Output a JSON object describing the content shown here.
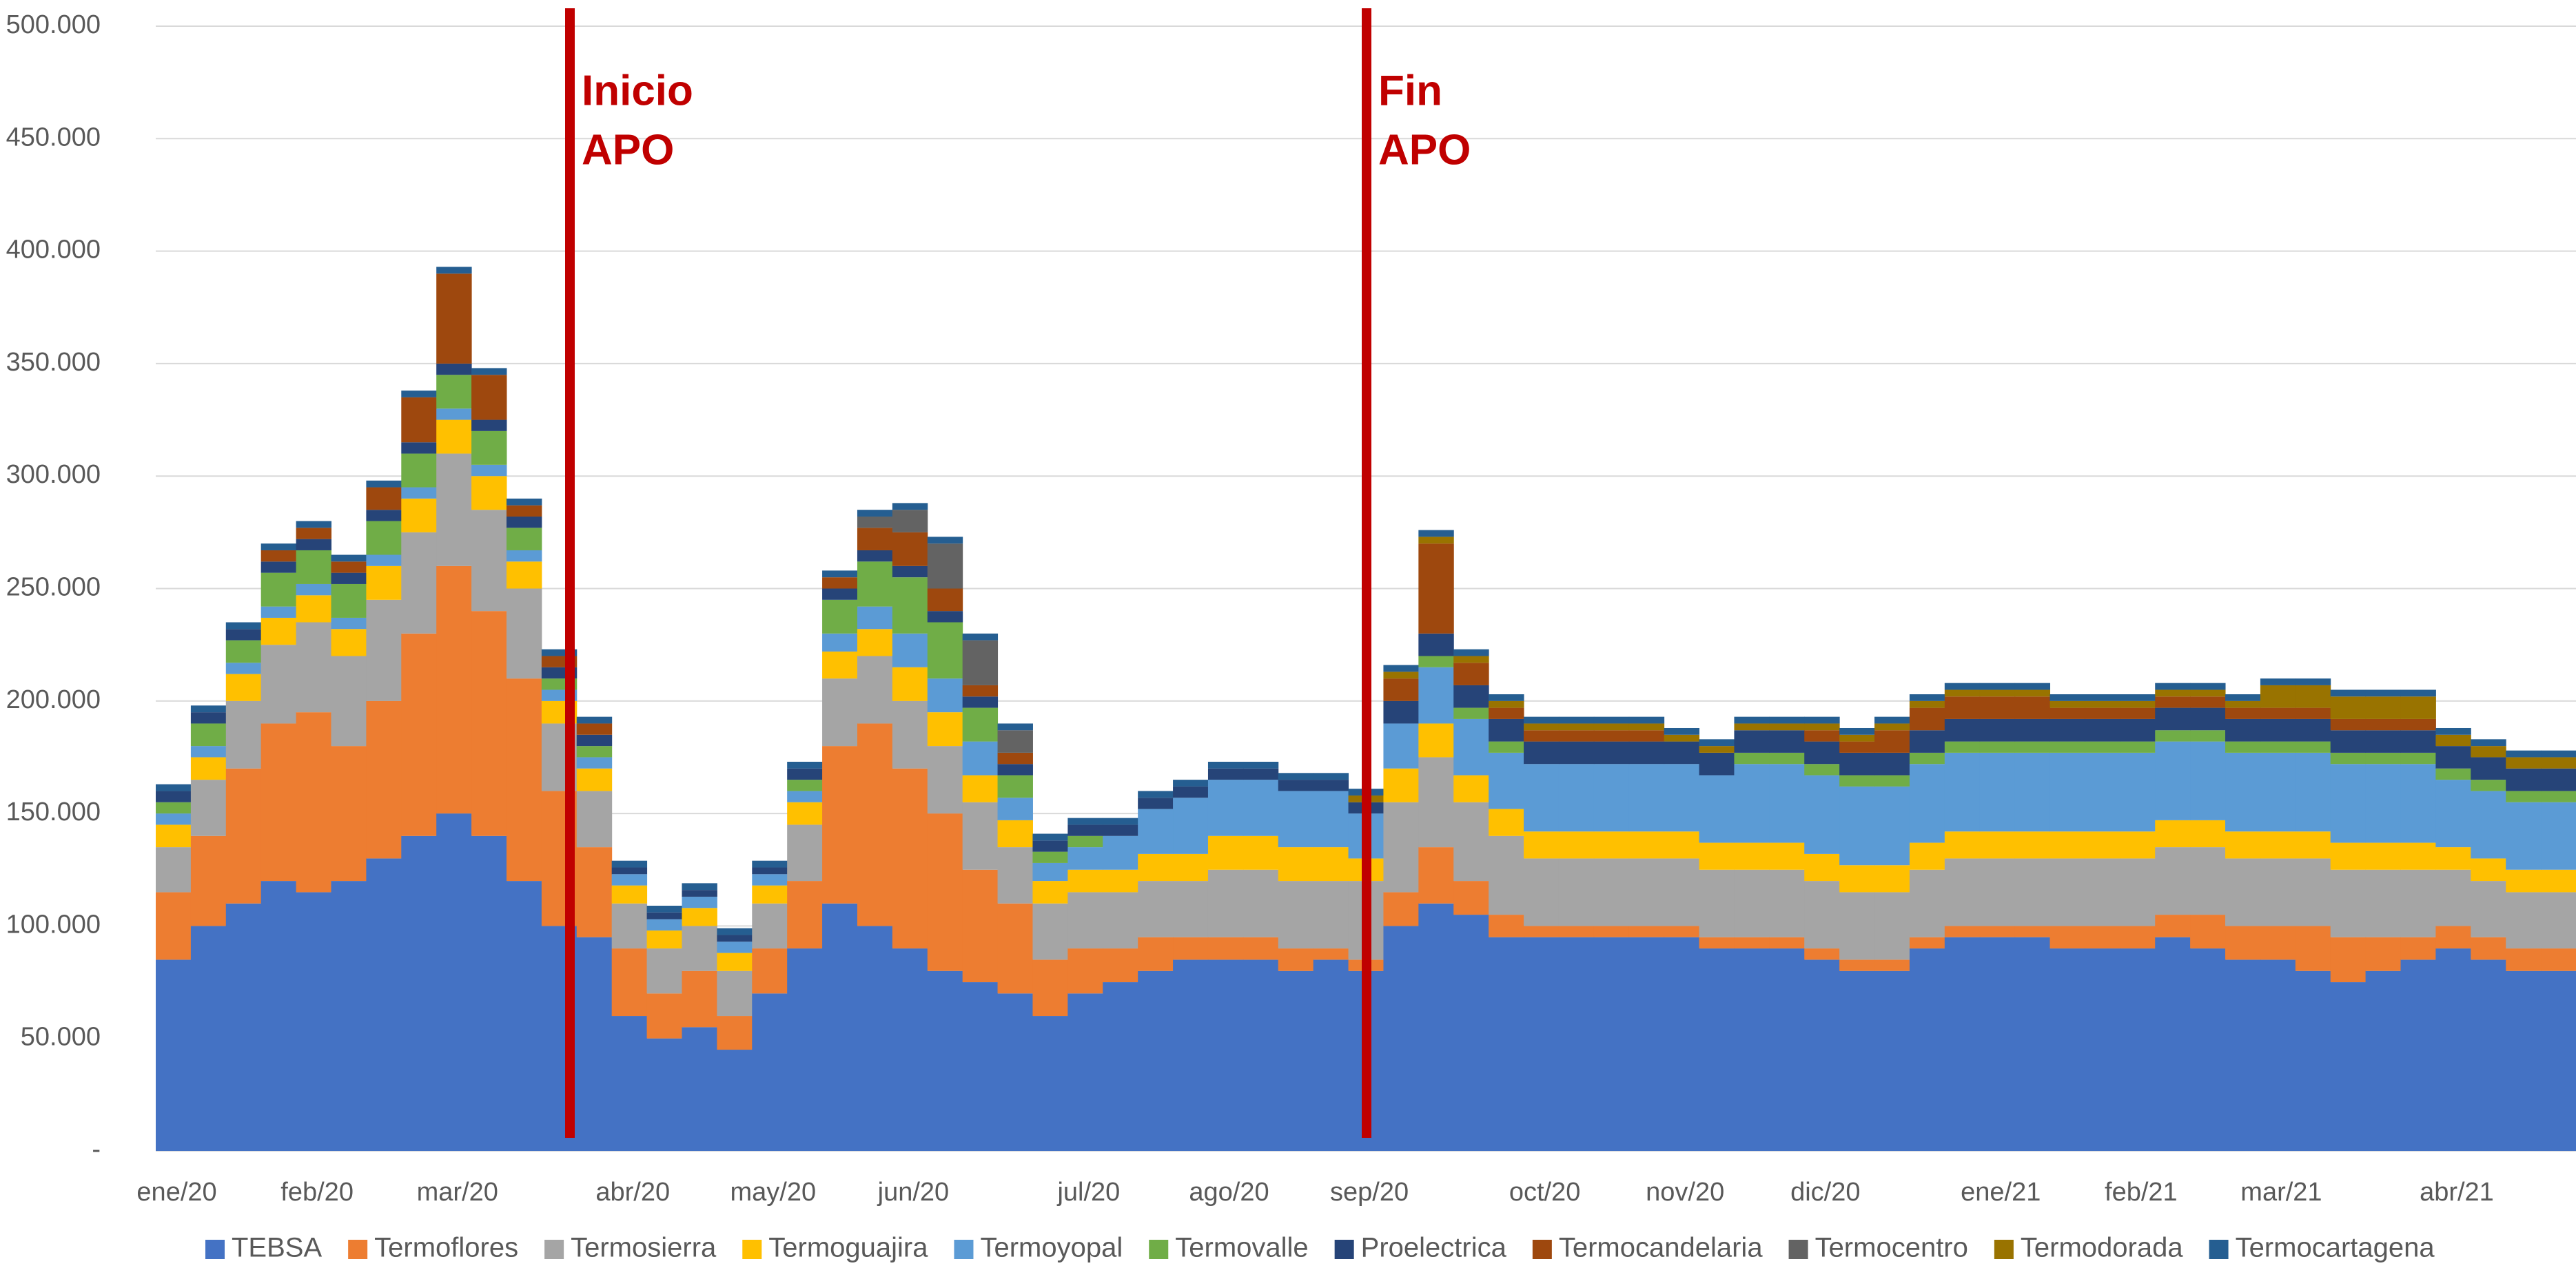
{
  "chart_data": {
    "type": "stacked_bar",
    "ylim": [
      0,
      500000
    ],
    "yticks": [
      {
        "value": 0,
        "label": "-"
      },
      {
        "value": 50000,
        "label": "50.000"
      },
      {
        "value": 100000,
        "label": "100.000"
      },
      {
        "value": 150000,
        "label": "150.000"
      },
      {
        "value": 200000,
        "label": "200.000"
      },
      {
        "value": 250000,
        "label": "250.000"
      },
      {
        "value": 300000,
        "label": "300.000"
      },
      {
        "value": 350000,
        "label": "350.000"
      },
      {
        "value": 400000,
        "label": "400.000"
      },
      {
        "value": 450000,
        "label": "450.000"
      },
      {
        "value": 500000,
        "label": "500.000"
      }
    ],
    "grid": true,
    "legend": "bottom",
    "annotations": [
      {
        "lines": [
          "Inicio",
          "APO"
        ],
        "color": "#c00000"
      },
      {
        "lines": [
          "Fin",
          "APO"
        ],
        "color": "#c00000"
      }
    ],
    "categories": [
      "ene/20",
      null,
      null,
      null,
      "feb/20",
      null,
      null,
      null,
      "mar/20",
      null,
      null,
      null,
      null,
      "abr/20",
      null,
      null,
      null,
      "may/20",
      null,
      null,
      null,
      "jun/20",
      null,
      null,
      null,
      null,
      "jul/20",
      null,
      null,
      null,
      "ago/20",
      null,
      null,
      null,
      "sep/20",
      null,
      null,
      null,
      null,
      "oct/20",
      null,
      null,
      null,
      "nov/20",
      null,
      null,
      null,
      "dic/20",
      null,
      null,
      null,
      null,
      "ene/21",
      null,
      null,
      null,
      "feb/21",
      null,
      null,
      null,
      "mar/21",
      null,
      null,
      null,
      null,
      "abr/21",
      null,
      null,
      null
    ],
    "series": [
      {
        "name": "TEBSA",
        "color": "#4472c4",
        "values": [
          85000,
          100000,
          110000,
          120000,
          115000,
          120000,
          130000,
          140000,
          150000,
          140000,
          120000,
          100000,
          95000,
          60000,
          50000,
          55000,
          45000,
          70000,
          90000,
          110000,
          100000,
          90000,
          80000,
          75000,
          70000,
          60000,
          70000,
          75000,
          80000,
          85000,
          85000,
          85000,
          80000,
          85000,
          80000,
          100000,
          110000,
          105000,
          95000,
          95000,
          95000,
          95000,
          95000,
          95000,
          90000,
          90000,
          90000,
          85000,
          80000,
          80000,
          90000,
          95000,
          95000,
          95000,
          90000,
          90000,
          90000,
          95000,
          90000,
          85000,
          85000,
          80000,
          75000,
          80000,
          85000,
          90000,
          85000,
          80000,
          80000
        ]
      },
      {
        "name": "Termoflores",
        "color": "#ed7d31",
        "values": [
          30000,
          40000,
          60000,
          70000,
          80000,
          60000,
          70000,
          90000,
          110000,
          100000,
          90000,
          60000,
          40000,
          30000,
          20000,
          25000,
          15000,
          20000,
          30000,
          70000,
          90000,
          80000,
          70000,
          50000,
          40000,
          25000,
          20000,
          15000,
          15000,
          10000,
          10000,
          10000,
          10000,
          5000,
          5000,
          15000,
          25000,
          15000,
          10000,
          5000,
          5000,
          5000,
          5000,
          5000,
          5000,
          5000,
          5000,
          5000,
          5000,
          5000,
          5000,
          5000,
          5000,
          5000,
          10000,
          10000,
          10000,
          10000,
          15000,
          15000,
          15000,
          20000,
          20000,
          15000,
          10000,
          10000,
          10000,
          10000,
          10000
        ]
      },
      {
        "name": "Termosierra",
        "color": "#a5a5a5",
        "values": [
          20000,
          25000,
          30000,
          35000,
          40000,
          40000,
          45000,
          45000,
          50000,
          45000,
          40000,
          30000,
          25000,
          20000,
          20000,
          20000,
          20000,
          20000,
          25000,
          30000,
          30000,
          30000,
          30000,
          30000,
          25000,
          25000,
          25000,
          25000,
          25000,
          25000,
          30000,
          30000,
          30000,
          30000,
          35000,
          40000,
          40000,
          35000,
          35000,
          30000,
          30000,
          30000,
          30000,
          30000,
          30000,
          30000,
          30000,
          30000,
          30000,
          30000,
          30000,
          30000,
          30000,
          30000,
          30000,
          30000,
          30000,
          30000,
          30000,
          30000,
          30000,
          30000,
          30000,
          30000,
          30000,
          25000,
          25000,
          25000,
          25000
        ]
      },
      {
        "name": "Termoguajira",
        "color": "#ffc000",
        "values": [
          10000,
          10000,
          12000,
          12000,
          12000,
          12000,
          15000,
          15000,
          15000,
          15000,
          12000,
          10000,
          10000,
          8000,
          8000,
          8000,
          8000,
          8000,
          10000,
          12000,
          12000,
          15000,
          15000,
          12000,
          12000,
          10000,
          10000,
          10000,
          12000,
          12000,
          15000,
          15000,
          15000,
          15000,
          10000,
          15000,
          15000,
          12000,
          12000,
          12000,
          12000,
          12000,
          12000,
          12000,
          12000,
          12000,
          12000,
          12000,
          12000,
          12000,
          12000,
          12000,
          12000,
          12000,
          12000,
          12000,
          12000,
          12000,
          12000,
          12000,
          12000,
          12000,
          12000,
          12000,
          12000,
          10000,
          10000,
          10000,
          10000
        ]
      },
      {
        "name": "Termoyopal",
        "color": "#5b9bd5",
        "values": [
          5000,
          5000,
          5000,
          5000,
          5000,
          5000,
          5000,
          5000,
          5000,
          5000,
          5000,
          5000,
          5000,
          5000,
          5000,
          5000,
          5000,
          5000,
          5000,
          8000,
          10000,
          15000,
          15000,
          15000,
          10000,
          8000,
          10000,
          15000,
          20000,
          25000,
          25000,
          25000,
          25000,
          25000,
          20000,
          20000,
          25000,
          25000,
          25000,
          30000,
          30000,
          30000,
          30000,
          30000,
          30000,
          35000,
          35000,
          35000,
          35000,
          35000,
          35000,
          35000,
          35000,
          35000,
          35000,
          35000,
          35000,
          35000,
          35000,
          35000,
          35000,
          35000,
          35000,
          35000,
          35000,
          30000,
          30000,
          30000,
          30000
        ]
      },
      {
        "name": "Termovalle",
        "color": "#70ad47",
        "values": [
          5000,
          10000,
          10000,
          15000,
          15000,
          15000,
          15000,
          15000,
          15000,
          15000,
          10000,
          5000,
          5000,
          0,
          0,
          0,
          0,
          0,
          5000,
          15000,
          20000,
          25000,
          25000,
          15000,
          10000,
          5000,
          5000,
          0,
          0,
          0,
          0,
          0,
          0,
          0,
          0,
          0,
          5000,
          5000,
          5000,
          0,
          0,
          0,
          0,
          0,
          0,
          5000,
          5000,
          5000,
          5000,
          5000,
          5000,
          5000,
          5000,
          5000,
          5000,
          5000,
          5000,
          5000,
          5000,
          5000,
          5000,
          5000,
          5000,
          5000,
          5000,
          5000,
          5000,
          5000,
          5000
        ]
      },
      {
        "name": "Proelectrica",
        "color": "#264478",
        "values": [
          5000,
          5000,
          5000,
          5000,
          5000,
          5000,
          5000,
          5000,
          5000,
          5000,
          5000,
          5000,
          5000,
          3000,
          3000,
          3000,
          3000,
          3000,
          5000,
          5000,
          5000,
          5000,
          5000,
          5000,
          5000,
          5000,
          5000,
          5000,
          5000,
          5000,
          5000,
          5000,
          5000,
          5000,
          5000,
          10000,
          10000,
          10000,
          10000,
          10000,
          10000,
          10000,
          10000,
          10000,
          10000,
          10000,
          10000,
          10000,
          10000,
          10000,
          10000,
          10000,
          10000,
          10000,
          10000,
          10000,
          10000,
          10000,
          10000,
          10000,
          10000,
          10000,
          10000,
          10000,
          10000,
          10000,
          10000,
          10000,
          10000
        ]
      },
      {
        "name": "Termocandelaria",
        "color": "#9e480e",
        "values": [
          0,
          0,
          0,
          5000,
          5000,
          5000,
          10000,
          20000,
          40000,
          20000,
          5000,
          5000,
          5000,
          0,
          0,
          0,
          0,
          0,
          0,
          5000,
          10000,
          15000,
          10000,
          5000,
          5000,
          0,
          0,
          0,
          0,
          0,
          0,
          0,
          0,
          0,
          0,
          10000,
          40000,
          10000,
          5000,
          5000,
          5000,
          5000,
          5000,
          0,
          0,
          0,
          0,
          5000,
          5000,
          10000,
          10000,
          10000,
          10000,
          10000,
          5000,
          5000,
          5000,
          5000,
          5000,
          5000,
          5000,
          5000,
          5000,
          5000,
          5000,
          0,
          0,
          0,
          0
        ]
      },
      {
        "name": "Termocentro",
        "color": "#636363",
        "values": [
          0,
          0,
          0,
          0,
          0,
          0,
          0,
          0,
          0,
          0,
          0,
          0,
          0,
          0,
          0,
          0,
          0,
          0,
          0,
          0,
          5000,
          10000,
          20000,
          20000,
          10000,
          0,
          0,
          0,
          0,
          0,
          0,
          0,
          0,
          0,
          0,
          0,
          0,
          0,
          0,
          0,
          0,
          0,
          0,
          0,
          0,
          0,
          0,
          0,
          0,
          0,
          0,
          0,
          0,
          0,
          0,
          0,
          0,
          0,
          0,
          0,
          0,
          0,
          0,
          0,
          0,
          0,
          0,
          0,
          0
        ]
      },
      {
        "name": "Termodorada",
        "color": "#997300",
        "values": [
          0,
          0,
          0,
          0,
          0,
          0,
          0,
          0,
          0,
          0,
          0,
          0,
          0,
          0,
          0,
          0,
          0,
          0,
          0,
          0,
          0,
          0,
          0,
          0,
          0,
          0,
          0,
          0,
          0,
          0,
          0,
          0,
          0,
          0,
          3000,
          3000,
          3000,
          3000,
          3000,
          3000,
          3000,
          3000,
          3000,
          3000,
          3000,
          3000,
          3000,
          3000,
          3000,
          3000,
          3000,
          3000,
          3000,
          3000,
          3000,
          3000,
          3000,
          3000,
          3000,
          3000,
          10000,
          10000,
          10000,
          10000,
          10000,
          5000,
          5000,
          5000,
          5000
        ]
      },
      {
        "name": "Termocartagena",
        "color": "#255e91",
        "values": [
          3000,
          3000,
          3000,
          3000,
          3000,
          3000,
          3000,
          3000,
          3000,
          3000,
          3000,
          3000,
          3000,
          3000,
          3000,
          3000,
          3000,
          3000,
          3000,
          3000,
          3000,
          3000,
          3000,
          3000,
          3000,
          3000,
          3000,
          3000,
          3000,
          3000,
          3000,
          3000,
          3000,
          3000,
          3000,
          3000,
          3000,
          3000,
          3000,
          3000,
          3000,
          3000,
          3000,
          3000,
          3000,
          3000,
          3000,
          3000,
          3000,
          3000,
          3000,
          3000,
          3000,
          3000,
          3000,
          3000,
          3000,
          3000,
          3000,
          3000,
          3000,
          3000,
          3000,
          3000,
          3000,
          3000,
          3000,
          3000,
          3000
        ]
      }
    ]
  }
}
